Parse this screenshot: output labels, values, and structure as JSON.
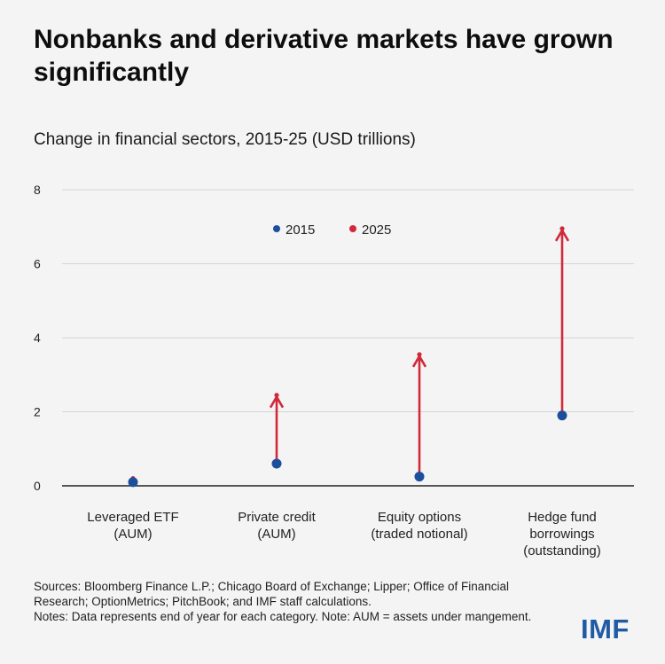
{
  "header": {
    "title": "Nonbanks and derivative markets have grown significantly",
    "subtitle": "Change in financial sectors, 2015-25 (USD trillions)"
  },
  "chart_data": {
    "type": "arrow-range",
    "title": "Nonbanks and derivative markets have grown significantly",
    "subtitle": "Change in financial sectors, 2015-25 (USD trillions)",
    "categories": [
      [
        "Leveraged ETF",
        "(AUM)"
      ],
      [
        "Private credit",
        "(AUM)"
      ],
      [
        "Equity options",
        "(traded notional)"
      ],
      [
        "Hedge fund",
        "borrowings",
        "(outstanding)"
      ]
    ],
    "series": [
      {
        "name": "2015",
        "color": "#1b4f9c",
        "values": [
          0.1,
          0.6,
          0.25,
          1.9
        ]
      },
      {
        "name": "2025",
        "color": "#d0293a",
        "values": [
          0.2,
          2.45,
          3.55,
          6.95
        ]
      }
    ],
    "yticks": [
      0,
      2,
      4,
      6,
      8
    ],
    "ylim": [
      0,
      8
    ],
    "grid": true,
    "legend_position": "top-center"
  },
  "footer": {
    "sources": "Sources: Bloomberg Finance L.P.; Chicago Board of Exchange; Lipper; Office of Financial Research; OptionMetrics; PitchBook; and IMF staff calculations.",
    "notes": "Notes: Data represents end of year for each category. Note: AUM = assets under mangement."
  },
  "logo": "IMF"
}
